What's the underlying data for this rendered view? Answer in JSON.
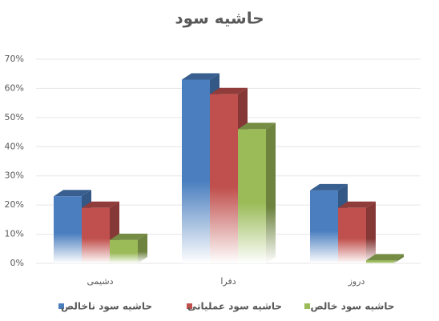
{
  "chart_data": {
    "type": "bar",
    "title": "حاشیه سود",
    "categories": [
      "دشیمی",
      "دفرا",
      "دروز"
    ],
    "series": [
      {
        "name": "حاشیه سود ناخالص",
        "color": "#4a7ebf",
        "values": [
          23,
          63,
          25
        ]
      },
      {
        "name": "حاشیه سود عملیاتی",
        "color": "#c0504d",
        "values": [
          19,
          58,
          19
        ]
      },
      {
        "name": "حاشیه سود خالص",
        "color": "#9bbb59",
        "values": [
          8,
          46,
          1
        ]
      }
    ],
    "ylim": [
      0,
      70
    ],
    "yticks": [
      {
        "value": 0,
        "label": "0%"
      },
      {
        "value": 10,
        "label": "10%"
      },
      {
        "value": 20,
        "label": "20%"
      },
      {
        "value": 30,
        "label": "30%"
      },
      {
        "value": 40,
        "label": "40%"
      },
      {
        "value": 50,
        "label": "50%"
      },
      {
        "value": 60,
        "label": "60%"
      },
      {
        "value": 70,
        "label": "70%"
      }
    ],
    "grid": true,
    "legend": "bottom"
  }
}
